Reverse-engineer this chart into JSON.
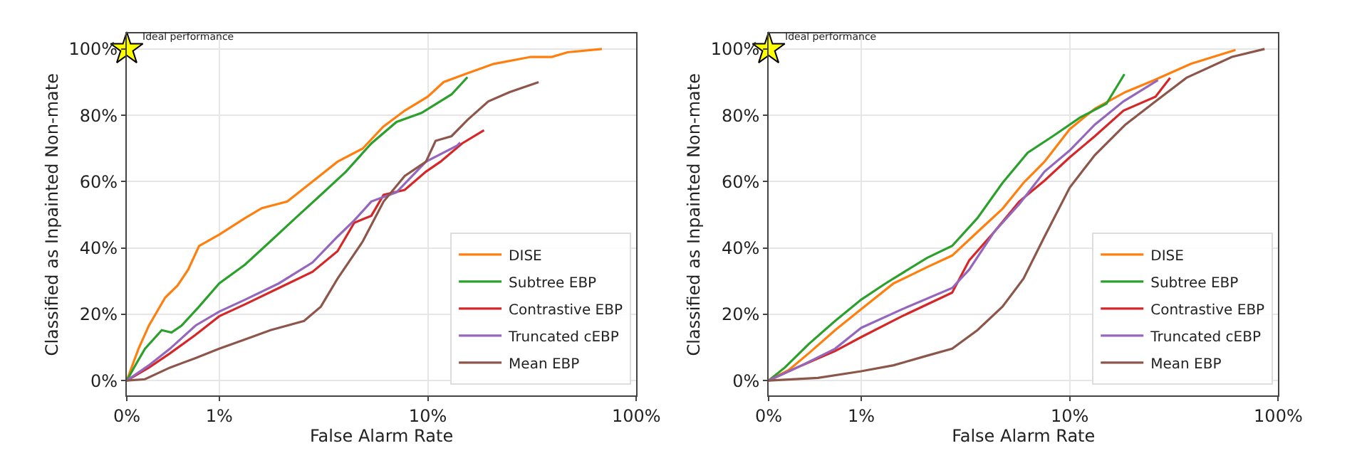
{
  "chart_data": [
    {
      "type": "line",
      "xlabel": "False Alarm Rate",
      "ylabel": "Classified as Inpainted Non-mate",
      "xlim": [
        0.36,
        100
      ],
      "ylim": [
        -4.5,
        104.6
      ],
      "xticks": [
        {
          "value": 0.36,
          "label": "0%"
        },
        {
          "value": 1,
          "label": "1%"
        },
        {
          "value": 10,
          "label": "10%"
        },
        {
          "value": 100,
          "label": "100%"
        }
      ],
      "yticks": [
        {
          "value": 0,
          "label": "0%"
        },
        {
          "value": 20,
          "label": "20%"
        },
        {
          "value": 40,
          "label": "40%"
        },
        {
          "value": 60,
          "label": "60%"
        },
        {
          "value": 80,
          "label": "80%"
        },
        {
          "value": 100,
          "label": "100%"
        }
      ],
      "grid": true,
      "legend": "bottom right",
      "line_style": "solid",
      "marker": "none",
      "log": "x",
      "annotations": [
        {
          "text": "Ideal performance",
          "x": 0.36,
          "y": 100
        }
      ],
      "series": [
        {
          "name": "DISE",
          "color": "#ff7f0e",
          "x": [
            0.36,
            0.41,
            0.46,
            0.55,
            0.63,
            0.71,
            0.8,
            1,
            1.33,
            1.6,
            2.12,
            2.8,
            3.69,
            4.88,
            6.1,
            7.75,
            10,
            11.9,
            15.5,
            20.7,
            31.2,
            39.3,
            46.8,
            68.4
          ],
          "values": [
            0,
            9.6,
            16.6,
            25,
            28.6,
            33.5,
            40.6,
            44,
            49,
            52,
            54,
            60,
            66,
            70,
            76.5,
            81.4,
            85.6,
            90,
            92.7,
            95.5,
            97.6,
            97.6,
            99,
            100
          ]
        },
        {
          "name": "Subtree EBP",
          "color": "#2ca02c",
          "x": [
            0.36,
            0.39,
            0.44,
            0.53,
            0.59,
            0.66,
            0.8,
            1,
            1.33,
            1.76,
            2.32,
            3.07,
            4.05,
            5.36,
            7.08,
            9.33,
            13,
            15.5
          ],
          "values": [
            0,
            3.9,
            9.6,
            15.2,
            14.5,
            16.6,
            22.3,
            29.3,
            35,
            42,
            49,
            56,
            63,
            71.5,
            78,
            80.7,
            86.3,
            91.5
          ]
        },
        {
          "name": "Contrastive EBP",
          "color": "#d62728",
          "x": [
            0.36,
            0.46,
            0.58,
            0.77,
            1,
            1.33,
            1.93,
            2.8,
            3.69,
            4.44,
            5.36,
            6.14,
            7.75,
            9.8,
            11.5,
            14.6,
            18.6
          ],
          "values": [
            0,
            3.9,
            8.2,
            13.8,
            19.4,
            23,
            27.9,
            32.8,
            39,
            47.6,
            49.7,
            56,
            57.5,
            63,
            66,
            71.5,
            75.5
          ]
        },
        {
          "name": "Truncated cEBP",
          "color": "#9467bd",
          "x": [
            0.36,
            0.46,
            0.58,
            0.77,
            1,
            1.33,
            1.93,
            2.8,
            3.69,
            4.44,
            5.36,
            7.08,
            9.8,
            13.8,
            14.3
          ],
          "values": [
            0,
            4.6,
            9.6,
            16.6,
            20.8,
            24.4,
            29.3,
            35.6,
            43.4,
            48.3,
            54,
            56.8,
            66,
            70.8,
            71.8
          ]
        },
        {
          "name": "Mean EBP",
          "color": "#8c564b",
          "x": [
            0.36,
            0.44,
            0.58,
            0.77,
            1,
            1.33,
            1.76,
            2.55,
            3.07,
            3.69,
            4.88,
            6.14,
            7.75,
            9.8,
            10.9,
            13,
            15.5,
            19.5,
            24.7,
            34
          ],
          "values": [
            0,
            0.4,
            3.9,
            6.8,
            9.6,
            12.4,
            15.2,
            18,
            22.3,
            30.7,
            42,
            54,
            61.7,
            66,
            72.3,
            73.7,
            78.6,
            84.2,
            87,
            90
          ]
        },
        {
          "type": "scatter",
          "marker": "star",
          "color": "#ffff00",
          "x": [
            0.36
          ],
          "values": [
            100
          ]
        }
      ]
    },
    {
      "type": "line",
      "xlabel": "False Alarm Rate",
      "ylabel": "Classified as Inpainted Non-mate",
      "xlim": [
        0.36,
        100
      ],
      "ylim": [
        -4.5,
        104.6
      ],
      "xticks": [
        {
          "value": 0.36,
          "label": "0%"
        },
        {
          "value": 1,
          "label": "1%"
        },
        {
          "value": 10,
          "label": "10%"
        },
        {
          "value": 100,
          "label": "100%"
        }
      ],
      "yticks": [
        {
          "value": 0,
          "label": "0%"
        },
        {
          "value": 20,
          "label": "20%"
        },
        {
          "value": 40,
          "label": "40%"
        },
        {
          "value": 60,
          "label": "60%"
        },
        {
          "value": 80,
          "label": "80%"
        },
        {
          "value": 100,
          "label": "100%"
        }
      ],
      "grid": true,
      "legend": "bottom right",
      "line_style": "solid",
      "marker": "none",
      "log": "x",
      "annotations": [
        {
          "text": "Ideal performance",
          "x": 0.36,
          "y": 100
        }
      ],
      "series": [
        {
          "name": "DISE",
          "color": "#ff7f0e",
          "x": [
            0.36,
            0.45,
            0.56,
            0.75,
            1,
            1.43,
            2.07,
            2.73,
            3.61,
            4.76,
            6,
            7.57,
            10,
            13.2,
            18.5,
            25.4,
            38.1,
            62.4
          ],
          "values": [
            0,
            3.2,
            8.2,
            15.2,
            21.5,
            29.3,
            34.2,
            37.7,
            44.8,
            51.8,
            59.6,
            66,
            75.8,
            82,
            87,
            90.6,
            95.5,
            99.7
          ]
        },
        {
          "name": "Subtree EBP",
          "color": "#2ca02c",
          "x": [
            0.36,
            0.43,
            0.56,
            0.75,
            1,
            1.31,
            2.07,
            2.73,
            3.61,
            4.76,
            6.29,
            8.3,
            11.2,
            15,
            18.3
          ],
          "values": [
            0,
            3.9,
            11,
            18,
            24.4,
            29.3,
            37,
            40.6,
            49,
            59.6,
            68.7,
            73.7,
            79.3,
            83.5,
            92.4
          ]
        },
        {
          "name": "Contrastive EBP",
          "color": "#d62728",
          "x": [
            0.36,
            0.52,
            0.75,
            1,
            1.57,
            2.73,
            3.3,
            4.34,
            5.73,
            7.57,
            10,
            13.2,
            18.1,
            25.8,
            30.3
          ],
          "values": [
            0,
            4.6,
            8.9,
            13.1,
            19.4,
            26.5,
            36.3,
            44.8,
            54,
            60.3,
            67.3,
            73.7,
            81.4,
            85.6,
            91.3
          ]
        },
        {
          "name": "Truncated cEBP",
          "color": "#9467bd",
          "x": [
            0.36,
            0.52,
            0.75,
            1,
            1.57,
            2.73,
            3.3,
            4.34,
            5.73,
            7.57,
            10,
            13.2,
            18.1,
            26.5
          ],
          "values": [
            0,
            4.6,
            9.6,
            15.9,
            21.5,
            27.9,
            33.5,
            44.8,
            53.2,
            63,
            69.4,
            77.2,
            84.2,
            90.6
          ]
        },
        {
          "name": "Mean EBP",
          "color": "#8c564b",
          "x": [
            0.36,
            0.62,
            1,
            1.43,
            2.07,
            2.73,
            3.61,
            4.76,
            6,
            7.57,
            10,
            13.2,
            18.5,
            25.8,
            36.3,
            60,
            86
          ],
          "values": [
            0,
            0.8,
            2.8,
            4.6,
            7.5,
            9.6,
            15.2,
            22.3,
            30.7,
            43.4,
            58.2,
            68,
            77.2,
            84.2,
            91.3,
            97.6,
            100
          ]
        },
        {
          "type": "scatter",
          "marker": "star",
          "color": "#ffff00",
          "x": [
            0.36
          ],
          "values": [
            100
          ]
        }
      ]
    }
  ]
}
